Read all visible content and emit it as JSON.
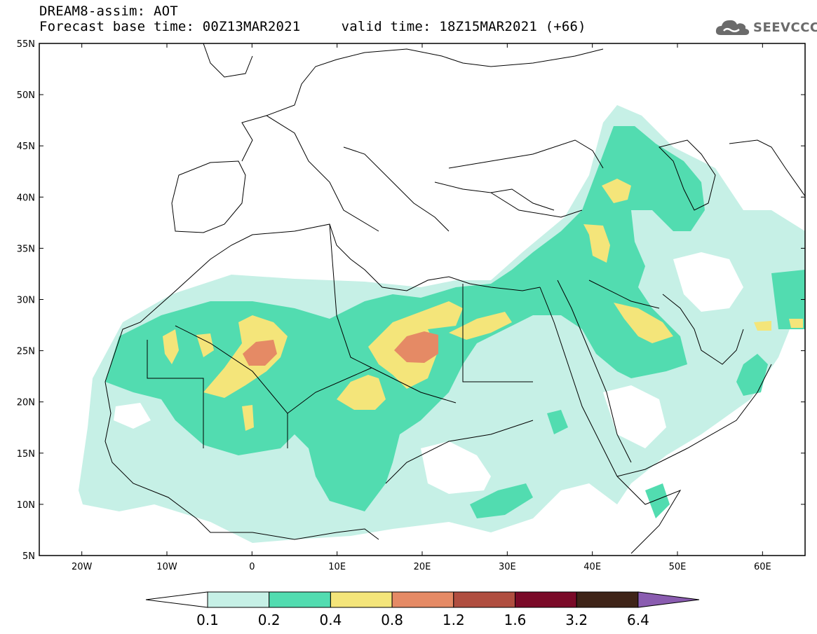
{
  "header": {
    "line1": "DREAM8-assim: AOT",
    "line2": "Forecast base time: 00Z13MAR2021     valid time: 18Z15MAR2021 (+66)"
  },
  "logo": {
    "text": "SEEVCCC",
    "icon": "cloud-icon"
  },
  "map": {
    "lon_range": [
      -25,
      65
    ],
    "lat_range": [
      5,
      55
    ],
    "lat_ticks": [
      "55N",
      "50N",
      "45N",
      "40N",
      "35N",
      "30N",
      "25N",
      "20N",
      "15N",
      "10N",
      "5N"
    ],
    "lon_ticks": [
      "20W",
      "10W",
      "0",
      "10E",
      "20E",
      "30E",
      "40E",
      "50E",
      "60E"
    ],
    "variable": "AOT",
    "features": [
      "Sahara dust plume over North Africa",
      "Arabian Peninsula",
      "Europe",
      "Mediterranean Sea"
    ]
  },
  "colorbar": {
    "labels": [
      "0.1",
      "0.2",
      "0.4",
      "0.8",
      "1.2",
      "1.6",
      "3.2",
      "6.4"
    ],
    "colors": [
      "#ffffff",
      "#c6f0e6",
      "#52dcb0",
      "#f4e57a",
      "#e58a65",
      "#b04e40",
      "#7a0a28",
      "#3f2418",
      "#8a5cb0"
    ]
  },
  "colors": {
    "c01": "#c6f0e6",
    "c02": "#52dcb0",
    "c04": "#f4e57a",
    "c08": "#e58a65",
    "c12": "#b04e40"
  }
}
